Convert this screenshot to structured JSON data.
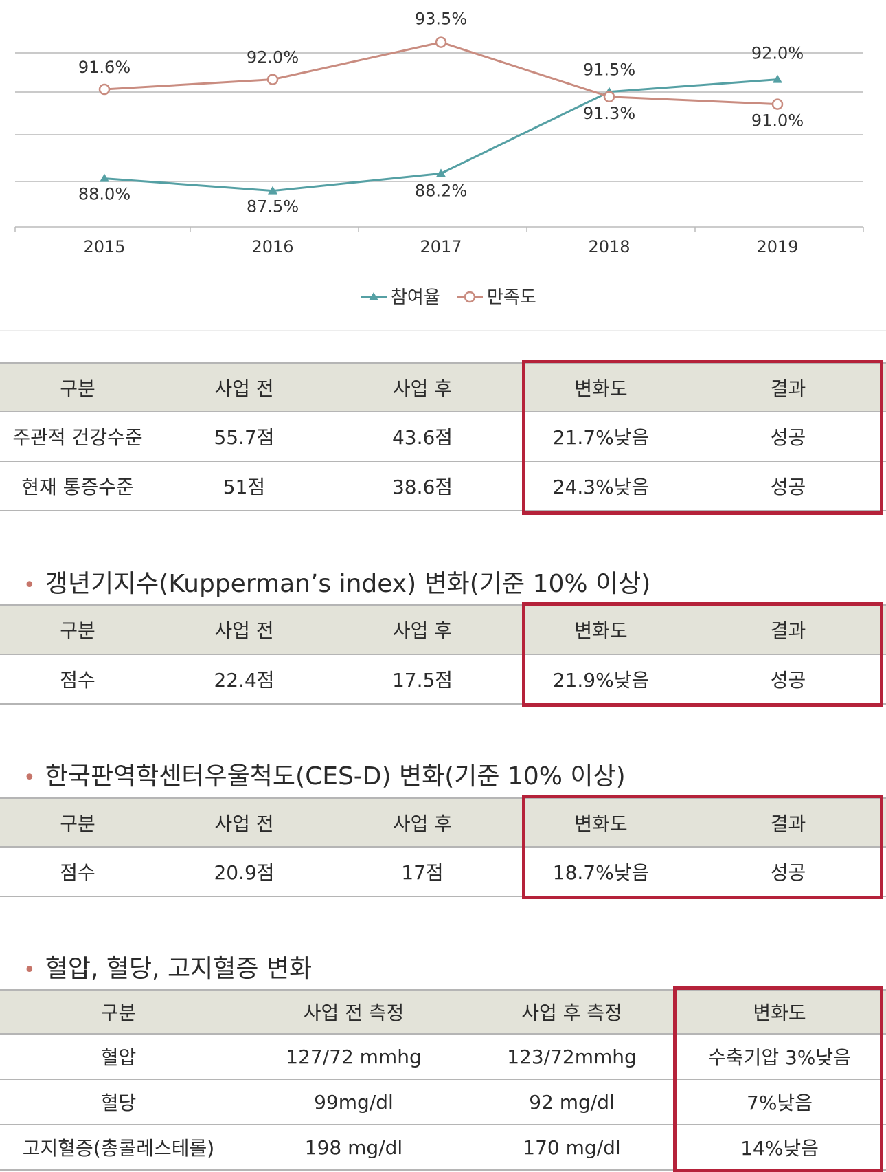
{
  "chart_data": {
    "type": "line",
    "categories": [
      "2015",
      "2016",
      "2017",
      "2018",
      "2019"
    ],
    "series": [
      {
        "name": "참여율",
        "values": [
          88.0,
          87.5,
          88.2,
          91.5,
          92.0
        ],
        "labels": [
          "88.0%",
          "87.5%",
          "88.2%",
          "91.5%",
          "92.0%"
        ],
        "color": "#55a0a4",
        "marker": "triangle"
      },
      {
        "name": "만족도",
        "values": [
          91.6,
          92.0,
          93.5,
          91.3,
          91.0
        ],
        "labels": [
          "91.6%",
          "92.0%",
          "93.5%",
          "91.3%",
          "91.0%"
        ],
        "color": "#c98c80",
        "marker": "circle"
      }
    ],
    "legend_position": "bottom",
    "grid": "horizontal",
    "colors": {
      "axis": "#bbbbbb",
      "grid": "#b8b8b8"
    }
  },
  "table1": {
    "headers": [
      "구분",
      "사업 전",
      "사업 후",
      "변화도",
      "결과"
    ],
    "rows": [
      [
        "주관적 건강수준",
        "55.7점",
        "43.6점",
        "21.7%낮음",
        "성공"
      ],
      [
        "현재 통증수준",
        "51점",
        "38.6점",
        "24.3%낮음",
        "성공"
      ]
    ]
  },
  "section2": {
    "title": "갱년기지수(Kupperman’s index) 변화(기준 10% 이상)",
    "headers": [
      "구분",
      "사업 전",
      "사업 후",
      "변화도",
      "결과"
    ],
    "rows": [
      [
        "점수",
        "22.4점",
        "17.5점",
        "21.9%낮음",
        "성공"
      ]
    ]
  },
  "section3": {
    "title": "한국판역학센터우울척도(CES-D) 변화(기준 10% 이상)",
    "headers": [
      "구분",
      "사업 전",
      "사업 후",
      "변화도",
      "결과"
    ],
    "rows": [
      [
        "점수",
        "20.9점",
        "17점",
        "18.7%낮음",
        "성공"
      ]
    ]
  },
  "section4": {
    "title": "혈압, 혈당, 고지혈증 변화",
    "headers": [
      "구분",
      "사업 전 측정",
      "사업 후 측정",
      "변화도"
    ],
    "rows": [
      [
        "혈압",
        "127/72 mmhg",
        "123/72mmhg",
        "수축기압 3%낮음"
      ],
      [
        "혈당",
        "99mg/dl",
        "92 mg/dl",
        "7%낮음"
      ],
      [
        "고지혈증(총콜레스테롤)",
        "198 mg/dl",
        "170 mg/dl",
        "14%낮음"
      ]
    ]
  },
  "colors": {
    "header_bg": "#e3e3d9",
    "highlight_border": "#b5223a",
    "bullet": "#c6756a"
  }
}
